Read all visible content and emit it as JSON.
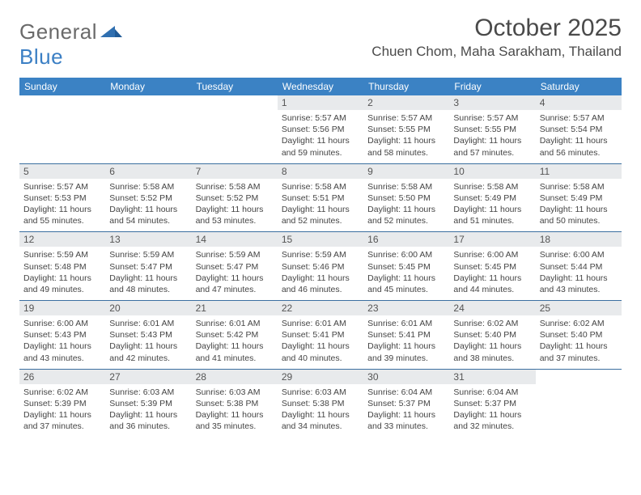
{
  "logo": {
    "text_general": "General",
    "text_blue": "Blue"
  },
  "header": {
    "month_title": "October 2025",
    "location": "Chuen Chom, Maha Sarakham, Thailand"
  },
  "colors": {
    "header_bg": "#3b82c4",
    "header_text": "#ffffff",
    "daynum_bg": "#e8eaec",
    "rule": "#3b6fa0",
    "body_text": "#444444"
  },
  "weekdays": [
    "Sunday",
    "Monday",
    "Tuesday",
    "Wednesday",
    "Thursday",
    "Friday",
    "Saturday"
  ],
  "weeks": [
    [
      null,
      null,
      null,
      {
        "n": "1",
        "sr": "5:57 AM",
        "ss": "5:56 PM",
        "dl": "11 hours and 59 minutes."
      },
      {
        "n": "2",
        "sr": "5:57 AM",
        "ss": "5:55 PM",
        "dl": "11 hours and 58 minutes."
      },
      {
        "n": "3",
        "sr": "5:57 AM",
        "ss": "5:55 PM",
        "dl": "11 hours and 57 minutes."
      },
      {
        "n": "4",
        "sr": "5:57 AM",
        "ss": "5:54 PM",
        "dl": "11 hours and 56 minutes."
      }
    ],
    [
      {
        "n": "5",
        "sr": "5:57 AM",
        "ss": "5:53 PM",
        "dl": "11 hours and 55 minutes."
      },
      {
        "n": "6",
        "sr": "5:58 AM",
        "ss": "5:52 PM",
        "dl": "11 hours and 54 minutes."
      },
      {
        "n": "7",
        "sr": "5:58 AM",
        "ss": "5:52 PM",
        "dl": "11 hours and 53 minutes."
      },
      {
        "n": "8",
        "sr": "5:58 AM",
        "ss": "5:51 PM",
        "dl": "11 hours and 52 minutes."
      },
      {
        "n": "9",
        "sr": "5:58 AM",
        "ss": "5:50 PM",
        "dl": "11 hours and 52 minutes."
      },
      {
        "n": "10",
        "sr": "5:58 AM",
        "ss": "5:49 PM",
        "dl": "11 hours and 51 minutes."
      },
      {
        "n": "11",
        "sr": "5:58 AM",
        "ss": "5:49 PM",
        "dl": "11 hours and 50 minutes."
      }
    ],
    [
      {
        "n": "12",
        "sr": "5:59 AM",
        "ss": "5:48 PM",
        "dl": "11 hours and 49 minutes."
      },
      {
        "n": "13",
        "sr": "5:59 AM",
        "ss": "5:47 PM",
        "dl": "11 hours and 48 minutes."
      },
      {
        "n": "14",
        "sr": "5:59 AM",
        "ss": "5:47 PM",
        "dl": "11 hours and 47 minutes."
      },
      {
        "n": "15",
        "sr": "5:59 AM",
        "ss": "5:46 PM",
        "dl": "11 hours and 46 minutes."
      },
      {
        "n": "16",
        "sr": "6:00 AM",
        "ss": "5:45 PM",
        "dl": "11 hours and 45 minutes."
      },
      {
        "n": "17",
        "sr": "6:00 AM",
        "ss": "5:45 PM",
        "dl": "11 hours and 44 minutes."
      },
      {
        "n": "18",
        "sr": "6:00 AM",
        "ss": "5:44 PM",
        "dl": "11 hours and 43 minutes."
      }
    ],
    [
      {
        "n": "19",
        "sr": "6:00 AM",
        "ss": "5:43 PM",
        "dl": "11 hours and 43 minutes."
      },
      {
        "n": "20",
        "sr": "6:01 AM",
        "ss": "5:43 PM",
        "dl": "11 hours and 42 minutes."
      },
      {
        "n": "21",
        "sr": "6:01 AM",
        "ss": "5:42 PM",
        "dl": "11 hours and 41 minutes."
      },
      {
        "n": "22",
        "sr": "6:01 AM",
        "ss": "5:41 PM",
        "dl": "11 hours and 40 minutes."
      },
      {
        "n": "23",
        "sr": "6:01 AM",
        "ss": "5:41 PM",
        "dl": "11 hours and 39 minutes."
      },
      {
        "n": "24",
        "sr": "6:02 AM",
        "ss": "5:40 PM",
        "dl": "11 hours and 38 minutes."
      },
      {
        "n": "25",
        "sr": "6:02 AM",
        "ss": "5:40 PM",
        "dl": "11 hours and 37 minutes."
      }
    ],
    [
      {
        "n": "26",
        "sr": "6:02 AM",
        "ss": "5:39 PM",
        "dl": "11 hours and 37 minutes."
      },
      {
        "n": "27",
        "sr": "6:03 AM",
        "ss": "5:39 PM",
        "dl": "11 hours and 36 minutes."
      },
      {
        "n": "28",
        "sr": "6:03 AM",
        "ss": "5:38 PM",
        "dl": "11 hours and 35 minutes."
      },
      {
        "n": "29",
        "sr": "6:03 AM",
        "ss": "5:38 PM",
        "dl": "11 hours and 34 minutes."
      },
      {
        "n": "30",
        "sr": "6:04 AM",
        "ss": "5:37 PM",
        "dl": "11 hours and 33 minutes."
      },
      {
        "n": "31",
        "sr": "6:04 AM",
        "ss": "5:37 PM",
        "dl": "11 hours and 32 minutes."
      },
      null
    ]
  ],
  "labels": {
    "sunrise": "Sunrise:",
    "sunset": "Sunset:",
    "daylight": "Daylight:"
  }
}
